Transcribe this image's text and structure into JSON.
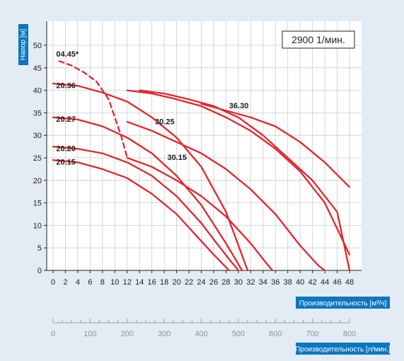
{
  "chart_data": {
    "type": "line",
    "speed_label": "2900 1/мин.",
    "ylabel": "Напор [м]",
    "xlabel": "Производительность [м³/ч]",
    "x2label": "Производительность [л/мин.]",
    "xlim": [
      0,
      48
    ],
    "ylim": [
      0,
      50
    ],
    "x_ticks": [
      0,
      2,
      4,
      6,
      8,
      10,
      12,
      14,
      16,
      18,
      20,
      22,
      24,
      26,
      28,
      30,
      32,
      34,
      36,
      38,
      40,
      42,
      44,
      46,
      48
    ],
    "y_ticks": [
      0,
      5,
      10,
      15,
      20,
      25,
      30,
      35,
      40,
      45,
      50
    ],
    "x2_ticks": [
      0,
      100,
      200,
      300,
      400,
      500,
      600,
      700,
      800
    ],
    "x2_max": 800,
    "grid": true,
    "series": [
      {
        "name": "04.45*",
        "style": "dashed",
        "x": [
          1,
          3,
          5,
          7,
          9,
          10,
          11,
          12
        ],
        "y": [
          46.5,
          45.5,
          44,
          42,
          38,
          34,
          30,
          25
        ]
      },
      {
        "name": "20.36",
        "x": [
          0,
          4,
          8,
          12,
          16,
          20,
          24,
          28,
          31.5
        ],
        "y": [
          41.5,
          41,
          39.5,
          37.5,
          34,
          29.5,
          23,
          13,
          0
        ]
      },
      {
        "name": "20.27",
        "x": [
          0,
          4,
          8,
          12,
          16,
          20,
          24,
          28,
          30.6
        ],
        "y": [
          34,
          33.5,
          32,
          29.5,
          26,
          21,
          14.5,
          6,
          0
        ]
      },
      {
        "name": "20.20",
        "x": [
          0,
          4,
          8,
          12,
          16,
          20,
          24,
          26.5,
          28.5,
          30
        ],
        "y": [
          27.5,
          27,
          26,
          24,
          21,
          16.5,
          10.5,
          6,
          2.5,
          0
        ]
      },
      {
        "name": "20.15",
        "x": [
          0,
          4,
          8,
          12,
          16,
          20,
          24,
          26,
          28.5
        ],
        "y": [
          24.5,
          24,
          22.5,
          20.5,
          17,
          12.5,
          6.5,
          3.5,
          0
        ]
      },
      {
        "name": "30.25",
        "x": [
          12,
          16,
          20,
          24,
          28,
          32,
          36,
          40,
          43,
          44
        ],
        "y": [
          33,
          31,
          28.5,
          26,
          22.5,
          18,
          12.5,
          5.5,
          1,
          0
        ]
      },
      {
        "name": "30.15",
        "x": [
          12,
          16,
          20,
          24,
          28,
          32,
          34,
          35.5
        ],
        "y": [
          25,
          23,
          20,
          16.5,
          12,
          6,
          2.5,
          0
        ]
      },
      {
        "name": "36.30",
        "x": [
          12,
          16,
          20,
          24,
          28,
          32,
          36,
          40,
          44,
          48
        ],
        "y": [
          40,
          39.3,
          38,
          36.5,
          34,
          31,
          27,
          22,
          15,
          3.5
        ]
      },
      {
        "name": "",
        "x": [
          14,
          18,
          22,
          26,
          30,
          34,
          38,
          42,
          46,
          48
        ],
        "y": [
          40,
          39.3,
          38,
          36.5,
          34,
          30,
          25,
          20,
          13,
          0
        ],
        "fragment": true
      },
      {
        "name": "",
        "x": [
          24,
          28,
          32,
          36,
          40,
          44,
          48
        ],
        "y": [
          37,
          35.5,
          34,
          32,
          28.5,
          24,
          18.5
        ],
        "fragment": true
      }
    ]
  }
}
